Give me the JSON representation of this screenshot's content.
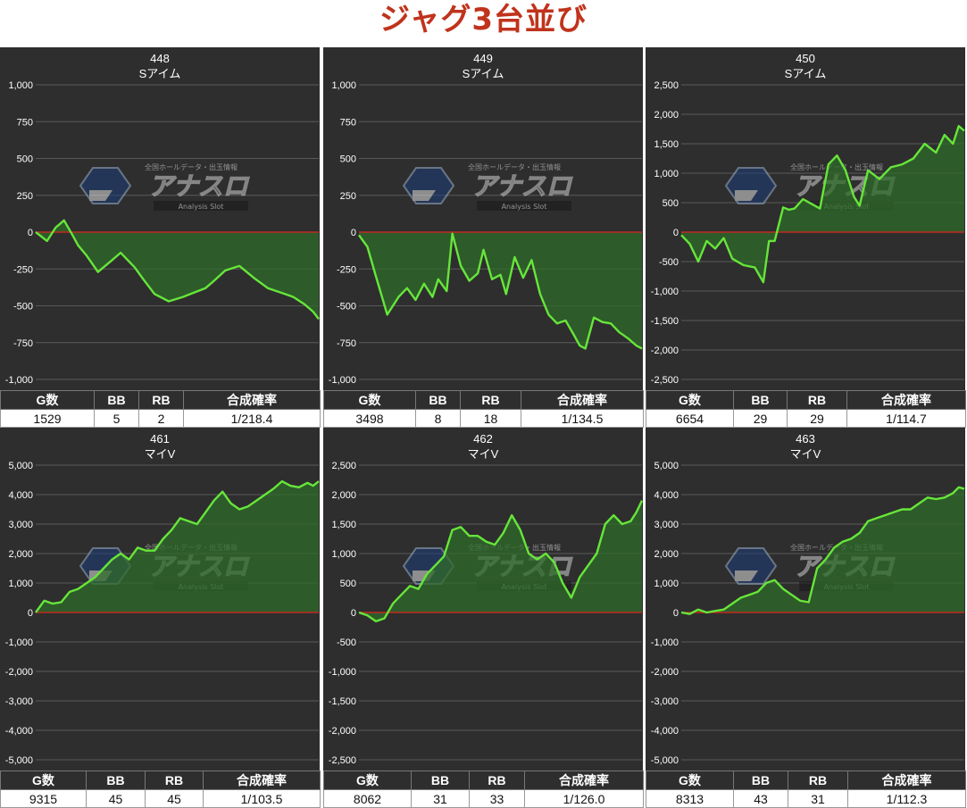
{
  "page": {
    "title": "ジャグ3台並び"
  },
  "colors": {
    "line": "#66e63a",
    "zero_line": "#c02a1e",
    "fill": "#2f6b2a",
    "grid": "#5a5a5a",
    "title": "#c0331c"
  },
  "watermark": {
    "brand": "アナスロ",
    "tagline": "Analysis Slot",
    "subtitle": "全国ホールデータ・出玉情報"
  },
  "stats_headers": [
    "G数",
    "BB",
    "RB",
    "合成確率"
  ],
  "chart_data": [
    {
      "type": "line",
      "title": "448",
      "subtitle": "Sアイム",
      "ylim": [
        -1000,
        1000
      ],
      "yticks": [
        1000,
        750,
        500,
        250,
        0,
        -250,
        -500,
        -750,
        -1000
      ],
      "ytick_labels": [
        "1,000",
        "750",
        "500",
        "250",
        "0",
        "-250",
        "-500",
        "-750",
        "-1,000"
      ],
      "x": [
        0,
        0.04,
        0.07,
        0.1,
        0.13,
        0.15,
        0.18,
        0.22,
        0.27,
        0.3,
        0.35,
        0.38,
        0.42,
        0.47,
        0.52,
        0.56,
        0.6,
        0.63,
        0.67,
        0.72,
        0.77,
        0.82,
        0.88,
        0.91,
        0.95,
        0.98,
        1.0
      ],
      "values": [
        0,
        -60,
        30,
        80,
        -20,
        -90,
        -160,
        -270,
        -190,
        -140,
        -240,
        -320,
        -420,
        -470,
        -440,
        -410,
        -380,
        -330,
        -260,
        -230,
        -310,
        -380,
        -420,
        -440,
        -490,
        -540,
        -590
      ],
      "stats": {
        "games": "1529",
        "bb": "5",
        "rb": "2",
        "rate": "1/218.4"
      }
    },
    {
      "type": "line",
      "title": "449",
      "subtitle": "Sアイム",
      "ylim": [
        -1000,
        1000
      ],
      "yticks": [
        1000,
        750,
        500,
        250,
        0,
        -250,
        -500,
        -750,
        -1000
      ],
      "ytick_labels": [
        "1,000",
        "750",
        "500",
        "250",
        "0",
        "-250",
        "-500",
        "-750",
        "-1,000"
      ],
      "x": [
        0,
        0.03,
        0.06,
        0.1,
        0.14,
        0.17,
        0.2,
        0.23,
        0.26,
        0.28,
        0.31,
        0.33,
        0.36,
        0.39,
        0.42,
        0.44,
        0.47,
        0.5,
        0.52,
        0.55,
        0.58,
        0.61,
        0.64,
        0.67,
        0.7,
        0.73,
        0.76,
        0.78,
        0.8,
        0.83,
        0.86,
        0.89,
        0.92,
        0.95,
        0.98,
        1.0
      ],
      "values": [
        -20,
        -100,
        -300,
        -560,
        -440,
        -380,
        -460,
        -350,
        -440,
        -320,
        -400,
        -10,
        -230,
        -330,
        -280,
        -120,
        -320,
        -290,
        -420,
        -170,
        -310,
        -190,
        -420,
        -560,
        -620,
        -600,
        -700,
        -770,
        -790,
        -580,
        -610,
        -620,
        -680,
        -720,
        -770,
        -790
      ],
      "stats": {
        "games": "3498",
        "bb": "8",
        "rb": "18",
        "rate": "1/134.5"
      }
    },
    {
      "type": "line",
      "title": "450",
      "subtitle": "Sアイム",
      "ylim": [
        -2500,
        2500
      ],
      "yticks": [
        2500,
        2000,
        1500,
        1000,
        500,
        0,
        -500,
        -1000,
        -1500,
        -2000,
        -2500
      ],
      "ytick_labels": [
        "2,500",
        "2,000",
        "1,500",
        "1,000",
        "500",
        "0",
        "-500",
        "-1,000",
        "-1,500",
        "-2,000",
        "-2,500"
      ],
      "x": [
        0,
        0.03,
        0.06,
        0.09,
        0.12,
        0.15,
        0.18,
        0.22,
        0.26,
        0.29,
        0.31,
        0.33,
        0.36,
        0.38,
        0.4,
        0.43,
        0.46,
        0.49,
        0.52,
        0.55,
        0.58,
        0.61,
        0.63,
        0.66,
        0.7,
        0.74,
        0.78,
        0.82,
        0.86,
        0.9,
        0.93,
        0.96,
        0.98,
        1.0
      ],
      "values": [
        -50,
        -200,
        -500,
        -150,
        -280,
        -100,
        -450,
        -560,
        -600,
        -850,
        -150,
        -150,
        420,
        380,
        400,
        560,
        480,
        400,
        1150,
        1300,
        1050,
        600,
        450,
        1050,
        900,
        1100,
        1150,
        1250,
        1500,
        1350,
        1650,
        1500,
        1800,
        1720
      ],
      "stats": {
        "games": "6654",
        "bb": "29",
        "rb": "29",
        "rate": "1/114.7"
      }
    },
    {
      "type": "line",
      "title": "461",
      "subtitle": "マイV",
      "ylim": [
        -5000,
        5000
      ],
      "yticks": [
        5000,
        4000,
        3000,
        2000,
        1000,
        0,
        -1000,
        -2000,
        -3000,
        -4000,
        -5000
      ],
      "ytick_labels": [
        "5,000",
        "4,000",
        "3,000",
        "2,000",
        "1,000",
        "0",
        "-1,000",
        "-2,000",
        "-3,000",
        "-4,000",
        "-5,000"
      ],
      "x": [
        0,
        0.03,
        0.06,
        0.09,
        0.12,
        0.15,
        0.18,
        0.21,
        0.24,
        0.27,
        0.3,
        0.33,
        0.36,
        0.39,
        0.42,
        0.45,
        0.48,
        0.51,
        0.54,
        0.57,
        0.6,
        0.63,
        0.66,
        0.69,
        0.72,
        0.75,
        0.78,
        0.81,
        0.84,
        0.87,
        0.9,
        0.93,
        0.96,
        0.98,
        1.0
      ],
      "values": [
        0,
        400,
        300,
        350,
        700,
        800,
        1000,
        1200,
        1500,
        1800,
        2000,
        1800,
        2200,
        2100,
        2100,
        2500,
        2800,
        3200,
        3100,
        3000,
        3400,
        3800,
        4100,
        3700,
        3500,
        3600,
        3800,
        4000,
        4200,
        4450,
        4300,
        4250,
        4400,
        4300,
        4450
      ],
      "stats": {
        "games": "9315",
        "bb": "45",
        "rb": "45",
        "rate": "1/103.5"
      }
    },
    {
      "type": "line",
      "title": "462",
      "subtitle": "マイV",
      "ylim": [
        -2500,
        2500
      ],
      "yticks": [
        2500,
        2000,
        1500,
        1000,
        500,
        0,
        -500,
        -1000,
        -1500,
        -2000,
        -2500
      ],
      "ytick_labels": [
        "2,500",
        "2,000",
        "1,500",
        "1,000",
        "500",
        "0",
        "-500",
        "-1,000",
        "-1,500",
        "-2,000",
        "-2,500"
      ],
      "x": [
        0,
        0.03,
        0.06,
        0.09,
        0.12,
        0.15,
        0.18,
        0.21,
        0.24,
        0.27,
        0.3,
        0.33,
        0.36,
        0.39,
        0.42,
        0.45,
        0.48,
        0.51,
        0.54,
        0.57,
        0.6,
        0.63,
        0.66,
        0.69,
        0.72,
        0.75,
        0.78,
        0.81,
        0.84,
        0.87,
        0.9,
        0.93,
        0.96,
        0.98,
        1.0
      ],
      "values": [
        0,
        -50,
        -150,
        -100,
        150,
        300,
        450,
        400,
        650,
        800,
        950,
        1400,
        1450,
        1300,
        1300,
        1200,
        1150,
        1350,
        1650,
        1400,
        1000,
        900,
        1000,
        850,
        500,
        250,
        600,
        800,
        1000,
        1500,
        1650,
        1500,
        1550,
        1700,
        1900
      ],
      "stats": {
        "games": "8062",
        "bb": "31",
        "rb": "33",
        "rate": "1/126.0"
      }
    },
    {
      "type": "line",
      "title": "463",
      "subtitle": "マイV",
      "ylim": [
        -5000,
        5000
      ],
      "yticks": [
        5000,
        4000,
        3000,
        2000,
        1000,
        0,
        -1000,
        -2000,
        -3000,
        -4000,
        -5000
      ],
      "ytick_labels": [
        "5,000",
        "4,000",
        "3,000",
        "2,000",
        "1,000",
        "0",
        "-1,000",
        "-2,000",
        "-3,000",
        "-4,000",
        "-5,000"
      ],
      "x": [
        0,
        0.03,
        0.06,
        0.09,
        0.12,
        0.15,
        0.18,
        0.21,
        0.24,
        0.27,
        0.3,
        0.33,
        0.36,
        0.39,
        0.42,
        0.45,
        0.48,
        0.51,
        0.54,
        0.57,
        0.6,
        0.63,
        0.66,
        0.69,
        0.72,
        0.75,
        0.78,
        0.81,
        0.84,
        0.87,
        0.9,
        0.93,
        0.96,
        0.98,
        1.0
      ],
      "values": [
        0,
        -50,
        100,
        0,
        50,
        100,
        300,
        500,
        600,
        700,
        1000,
        1100,
        800,
        600,
        400,
        350,
        1500,
        1800,
        2200,
        2400,
        2500,
        2700,
        3100,
        3200,
        3300,
        3400,
        3500,
        3500,
        3700,
        3900,
        3850,
        3900,
        4050,
        4250,
        4200
      ],
      "stats": {
        "games": "8313",
        "bb": "43",
        "rb": "31",
        "rate": "1/112.3"
      }
    }
  ]
}
